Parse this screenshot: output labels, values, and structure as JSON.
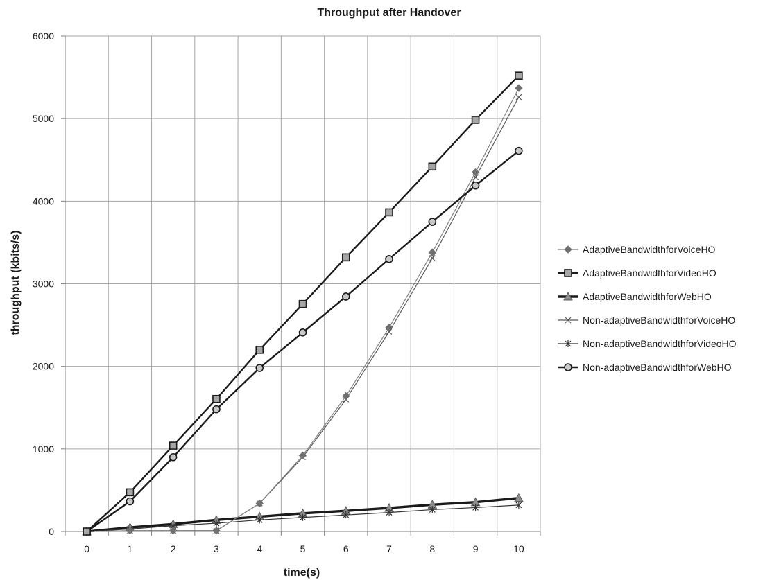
{
  "chart_data": {
    "type": "line",
    "title": "Throughput after Handover",
    "xlabel": "time(s)",
    "ylabel": "throughput (kbits/s)",
    "x": [
      0,
      1,
      2,
      3,
      4,
      5,
      6,
      7,
      8,
      9,
      10
    ],
    "xlim": [
      -0.5,
      10.5
    ],
    "ylim": [
      0,
      6000
    ],
    "y_ticks": [
      0,
      1000,
      2000,
      3000,
      4000,
      5000,
      6000
    ],
    "grid": true,
    "legend_position": "right",
    "series": [
      {
        "name": "AdaptiveBandwidthforVoiceHO",
        "marker": "diamond",
        "color": "#7f7f7f",
        "line_width": "thin",
        "values": [
          0,
          10,
          10,
          10,
          340,
          920,
          1640,
          2470,
          3380,
          4350,
          5370
        ]
      },
      {
        "name": "AdaptiveBandwidthforVideoHO",
        "marker": "square",
        "color": "#1a1a1a",
        "line_width": "thick",
        "values": [
          0,
          475,
          1040,
          1605,
          2200,
          2755,
          3320,
          3865,
          4420,
          4985,
          5520
        ]
      },
      {
        "name": "AdaptiveBandwidthforWebHO",
        "marker": "triangle",
        "color": "#1a1a1a",
        "line_width": "extra-thick",
        "values": [
          0,
          50,
          90,
          140,
          180,
          220,
          250,
          285,
          325,
          355,
          405
        ]
      },
      {
        "name": "Non-adaptiveBandwidthforVoiceHO",
        "marker": "x",
        "color": "#595959",
        "line_width": "thin",
        "values": [
          0,
          10,
          10,
          10,
          340,
          900,
          1600,
          2420,
          3310,
          4290,
          5260
        ]
      },
      {
        "name": "Non-adaptiveBandwidthforVideoHO",
        "marker": "star",
        "color": "#333333",
        "line_width": "thin",
        "values": [
          0,
          30,
          70,
          100,
          140,
          170,
          200,
          230,
          265,
          290,
          320
        ]
      },
      {
        "name": "Non-adaptiveBandwidthforWebHO",
        "marker": "circle",
        "color": "#1a1a1a",
        "line_width": "thick",
        "values": [
          0,
          365,
          900,
          1480,
          1980,
          2410,
          2845,
          3300,
          3750,
          4190,
          4610
        ]
      }
    ]
  }
}
